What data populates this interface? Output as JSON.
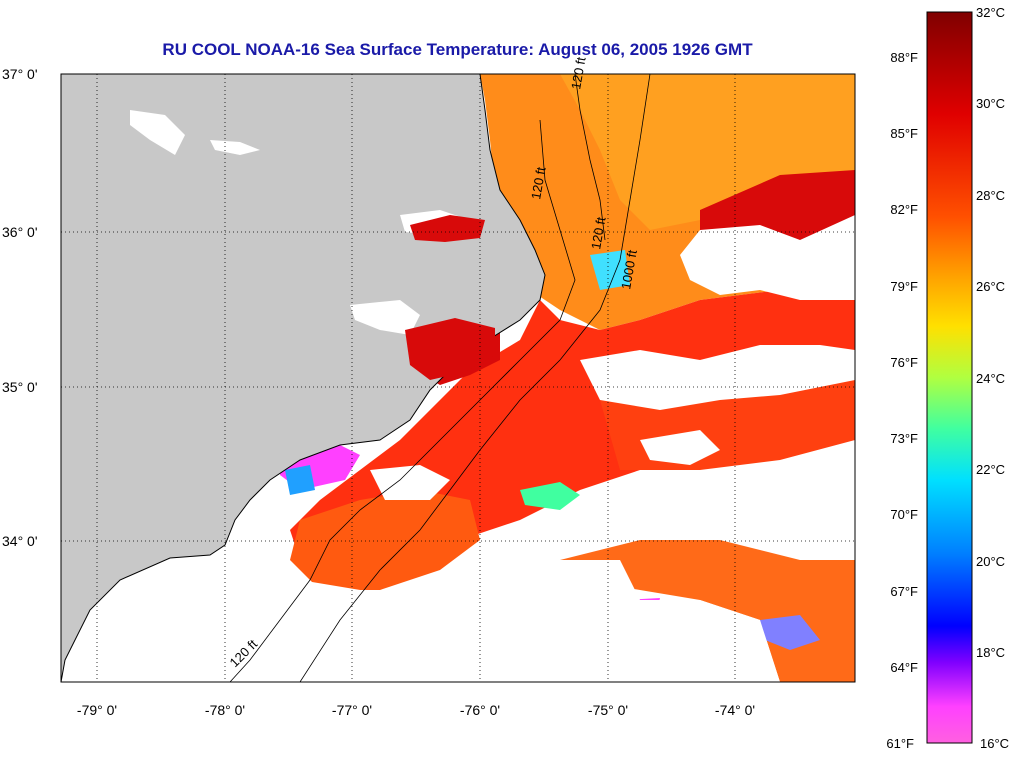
{
  "title": "RU COOL  NOAA-16  Sea Surface Temperature:  August 06, 2005 1926 GMT",
  "lat_labels": [
    "37° 0'",
    "36° 0'",
    "35° 0'",
    "34° 0'"
  ],
  "lon_labels": [
    "-79° 0'",
    "-78° 0'",
    "-77° 0'",
    "-76° 0'",
    "-75° 0'",
    "-74° 0'"
  ],
  "colorbar": {
    "fahrenheit": [
      "88°F",
      "85°F",
      "82°F",
      "79°F",
      "76°F",
      "73°F",
      "70°F",
      "67°F",
      "64°F",
      "61°F"
    ],
    "celsius": [
      "32°C",
      "30°C",
      "28°C",
      "26°C",
      "24°C",
      "22°C",
      "20°C",
      "18°C",
      "16°C"
    ],
    "stops": [
      "#800000",
      "#c00000",
      "#ff2000",
      "#ff6000",
      "#ffa000",
      "#ffe000",
      "#b0ff40",
      "#40ffa0",
      "#00e0ff",
      "#0080ff",
      "#0000ff",
      "#8000ff",
      "#ff40ff",
      "#ff60e0"
    ]
  },
  "contour_labels": [
    "120 ft",
    "1000 ft",
    "120 ft",
    "120 ft",
    "120 ft"
  ],
  "colors": {
    "land": "#c8c8c8",
    "title": "#1a1aa8",
    "cloud": "#ffffff"
  }
}
